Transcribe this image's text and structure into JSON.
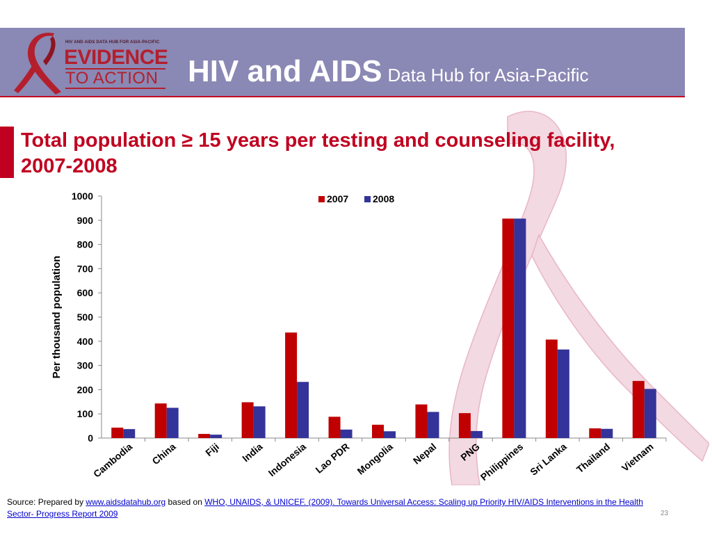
{
  "header": {
    "logo_tagline": "HIV AND AIDS DATA HUB FOR ASIA-PACIFIC",
    "logo_line1": "EVIDENCE",
    "logo_line2": "TO ACTION",
    "title_main": "HIV and AIDS",
    "title_sub": "Data Hub for Asia-Pacific"
  },
  "slide": {
    "title": "Total population ≥ 15 years per testing and counseling facility, 2007-2008",
    "page_number": "23"
  },
  "footer": {
    "prefix": "Source:  Prepared by ",
    "link1": "www.aidsdatahub.org",
    "middle": " based on ",
    "link2": "WHO, UNAIDS, & UNICEF. (2009). Towards Universal Access: Scaling up Priority HIV/AIDS Interventions in the Health Sector- Progress Report 2009"
  },
  "colors": {
    "header_bg": "#8a88b4",
    "accent_red": "#c00020",
    "series_2007": "#c00000",
    "series_2008": "#333399"
  },
  "chart_data": {
    "type": "bar",
    "title": "",
    "xlabel": "",
    "ylabel": "Per thousand population",
    "ylim": [
      0,
      1000
    ],
    "yticks": [
      0,
      100,
      200,
      300,
      400,
      500,
      600,
      700,
      800,
      900,
      1000
    ],
    "legend_position": "top-right",
    "grid": false,
    "categories": [
      "Cambodia",
      "China",
      "Fiji",
      "India",
      "Indonesia",
      "Lao PDR",
      "Mongolia",
      "Nepal",
      "PNG",
      "Philippines",
      "Sri Lanka",
      "Thailand",
      "Vietnam"
    ],
    "series": [
      {
        "name": "2007",
        "color": "#c00000",
        "values": [
          43,
          143,
          17,
          148,
          436,
          88,
          55,
          139,
          103,
          907,
          407,
          40,
          236
        ]
      },
      {
        "name": "2008",
        "color": "#333399",
        "values": [
          37,
          125,
          14,
          131,
          232,
          35,
          28,
          108,
          29,
          907,
          366,
          38,
          203
        ]
      }
    ]
  }
}
